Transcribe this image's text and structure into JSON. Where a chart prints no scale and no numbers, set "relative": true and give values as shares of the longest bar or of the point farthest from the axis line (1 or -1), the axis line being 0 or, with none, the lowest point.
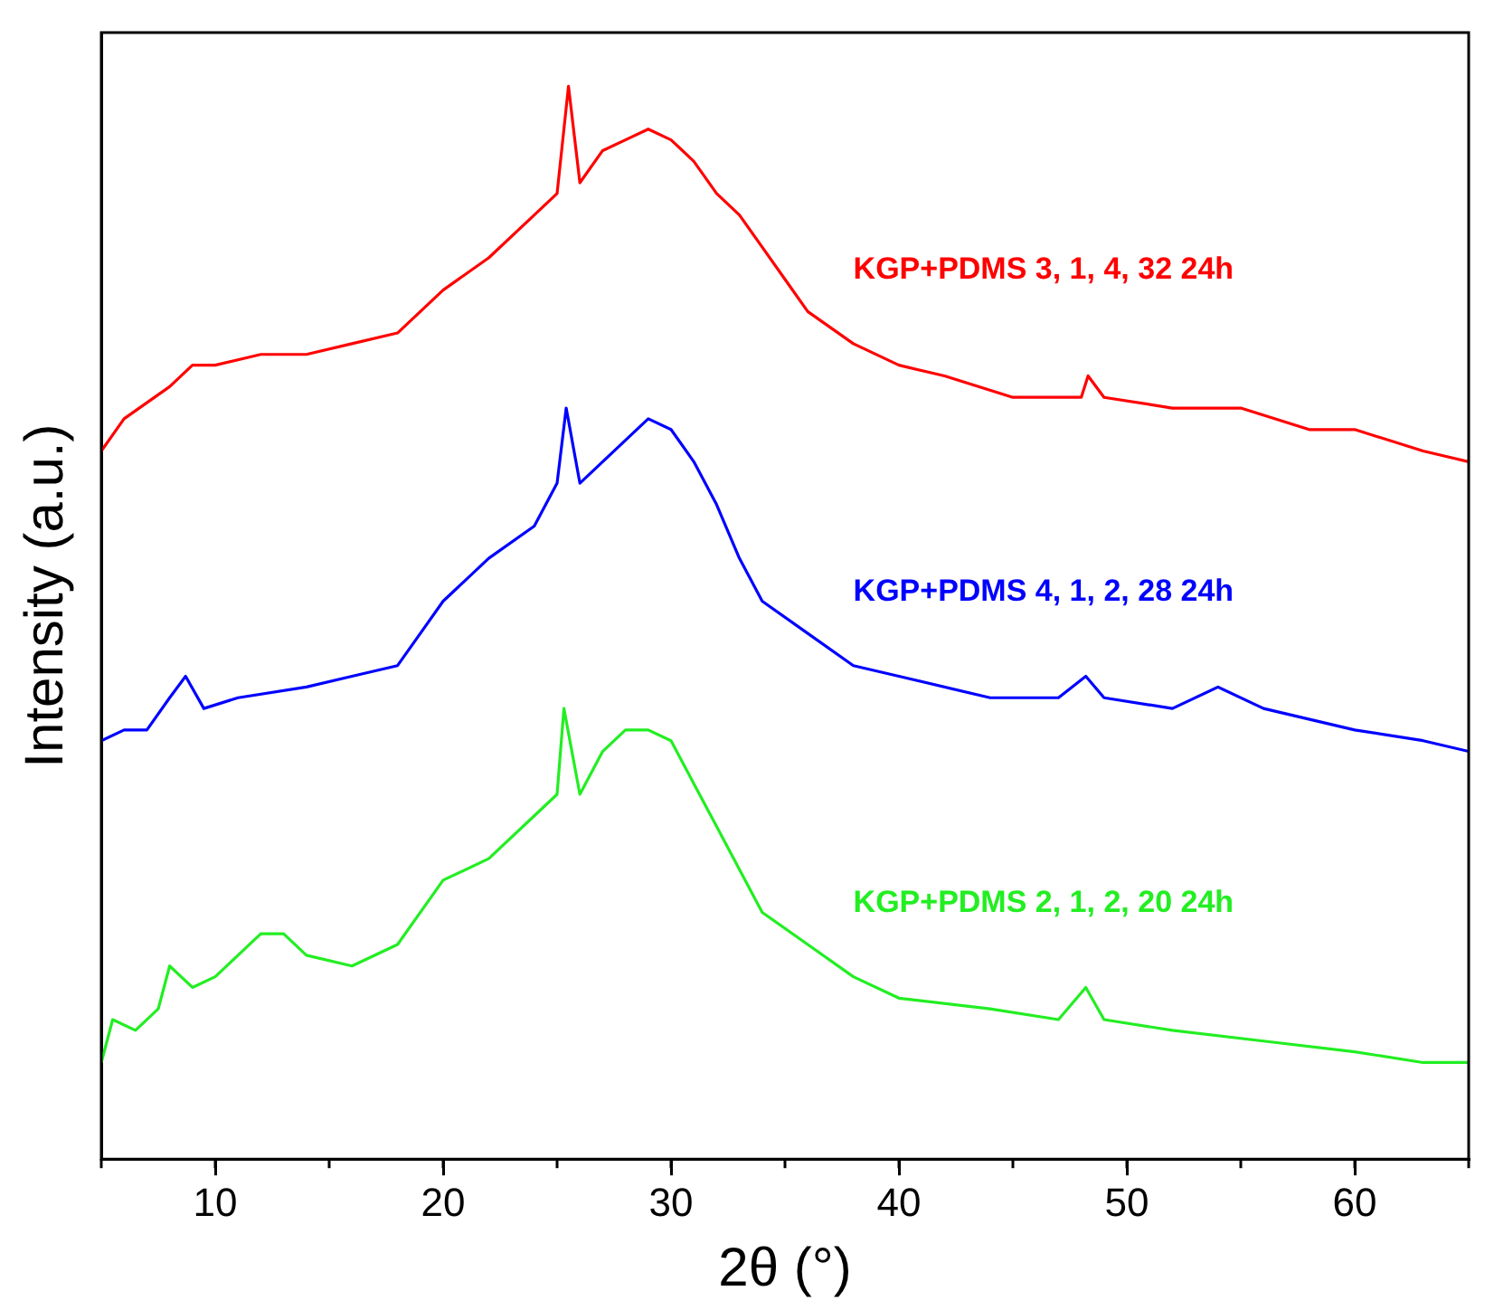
{
  "chart_data": {
    "type": "line",
    "relative": true,
    "xlabel": "2θ (°)",
    "ylabel": "Intensity (a.u.)",
    "xlim": [
      5,
      65
    ],
    "xticks": [
      10,
      20,
      30,
      40,
      50,
      60
    ],
    "grid": false,
    "legend": false,
    "marker": "none",
    "line_style": "solid",
    "series": [
      {
        "name": "KGP+PDMS 3, 1, 4, 32 24h",
        "color": "#ff0000",
        "x": [
          5,
          6,
          8,
          9,
          10,
          12,
          14,
          16,
          18,
          20,
          22,
          24,
          25,
          25.5,
          26,
          27,
          28,
          29,
          30,
          31,
          32,
          33,
          34,
          35,
          36,
          38,
          40,
          42,
          45,
          48,
          48.3,
          49,
          52,
          55,
          58,
          60,
          63,
          65
        ],
        "values": [
          0.66,
          0.69,
          0.72,
          0.74,
          0.74,
          0.75,
          0.75,
          0.76,
          0.77,
          0.81,
          0.84,
          0.88,
          0.9,
          1.0,
          0.91,
          0.94,
          0.95,
          0.96,
          0.95,
          0.93,
          0.9,
          0.88,
          0.85,
          0.82,
          0.79,
          0.76,
          0.74,
          0.73,
          0.71,
          0.71,
          0.73,
          0.71,
          0.7,
          0.7,
          0.68,
          0.68,
          0.66,
          0.65
        ]
      },
      {
        "name": "KGP+PDMS 4, 1, 2, 28 24h",
        "color": "#0000ff",
        "x": [
          5,
          6,
          7,
          8,
          8.7,
          9.5,
          11,
          14,
          16,
          18,
          19,
          20,
          22,
          24,
          25,
          25.4,
          26,
          27,
          28,
          29,
          30,
          31,
          32,
          33,
          34,
          36,
          38,
          40,
          44,
          47,
          48.2,
          49,
          52,
          54,
          56,
          60,
          63,
          65
        ],
        "values": [
          0.39,
          0.4,
          0.4,
          0.43,
          0.45,
          0.42,
          0.43,
          0.44,
          0.45,
          0.46,
          0.49,
          0.52,
          0.56,
          0.59,
          0.63,
          0.7,
          0.63,
          0.65,
          0.67,
          0.69,
          0.68,
          0.65,
          0.61,
          0.56,
          0.52,
          0.49,
          0.46,
          0.45,
          0.43,
          0.43,
          0.45,
          0.43,
          0.42,
          0.44,
          0.42,
          0.4,
          0.39,
          0.38
        ]
      },
      {
        "name": "KGP+PDMS 2, 1, 2, 20 24h",
        "color": "#22ee22",
        "x": [
          5,
          5.5,
          6.5,
          7.5,
          8,
          9,
          10,
          11,
          12,
          13,
          14,
          16,
          18,
          20,
          22,
          24,
          25,
          25.3,
          26,
          27,
          28,
          29,
          30,
          31,
          32,
          33,
          34,
          36,
          38,
          40,
          44,
          47,
          48.2,
          49,
          52,
          56,
          60,
          63,
          65
        ],
        "values": [
          0.09,
          0.13,
          0.12,
          0.14,
          0.18,
          0.16,
          0.17,
          0.19,
          0.21,
          0.21,
          0.19,
          0.18,
          0.2,
          0.26,
          0.28,
          0.32,
          0.34,
          0.42,
          0.34,
          0.38,
          0.4,
          0.4,
          0.39,
          0.35,
          0.31,
          0.27,
          0.23,
          0.2,
          0.17,
          0.15,
          0.14,
          0.13,
          0.16,
          0.13,
          0.12,
          0.11,
          0.1,
          0.09,
          0.09
        ]
      }
    ]
  }
}
